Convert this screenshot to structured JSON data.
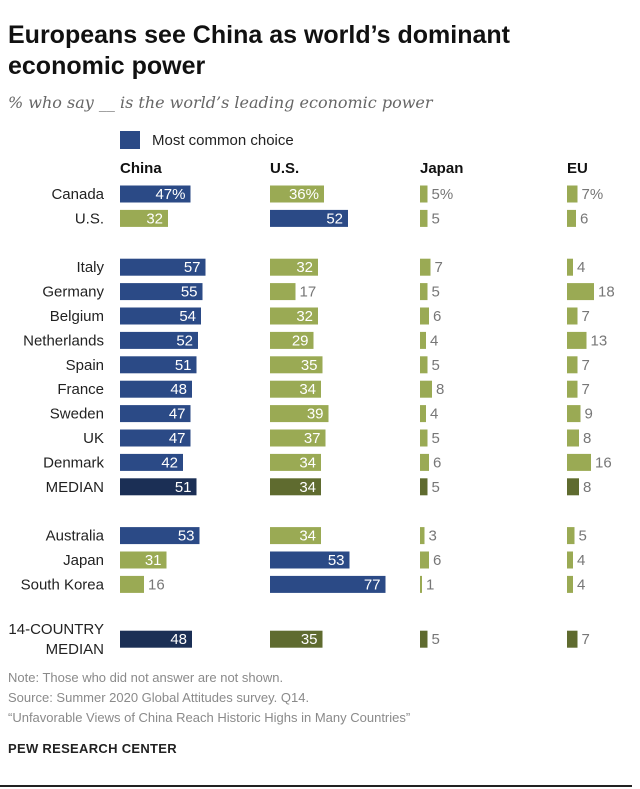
{
  "title": "Europeans see China as world’s dominant economic power",
  "subtitle": "% who say __ is the world’s leading economic power",
  "legend": {
    "label": "Most common choice",
    "color": "#2b4a86"
  },
  "colors": {
    "most_common": "#2b4a86",
    "other": "#9aaa54",
    "median_most_common": "#1b2f55",
    "median_other": "#5f6b2f",
    "label_on_dark": "#ffffff",
    "label_on_light": "#ffffff",
    "label_outside": "#777777"
  },
  "chart_data": {
    "type": "bar",
    "orientation": "horizontal",
    "columns": [
      "China",
      "U.S.",
      "Japan",
      "EU"
    ],
    "rows": [
      {
        "label": "Canada",
        "values": [
          47,
          36,
          5,
          7
        ],
        "pct": true,
        "most_common": 0,
        "median": false,
        "group_break_before": false
      },
      {
        "label": "U.S.",
        "values": [
          32,
          52,
          5,
          6
        ],
        "pct": false,
        "most_common": 1,
        "median": false,
        "group_break_before": false
      },
      {
        "label": "Italy",
        "values": [
          57,
          32,
          7,
          4
        ],
        "pct": false,
        "most_common": 0,
        "median": false,
        "group_break_before": true
      },
      {
        "label": "Germany",
        "values": [
          55,
          17,
          5,
          18
        ],
        "pct": false,
        "most_common": 0,
        "median": false,
        "group_break_before": false
      },
      {
        "label": "Belgium",
        "values": [
          54,
          32,
          6,
          7
        ],
        "pct": false,
        "most_common": 0,
        "median": false,
        "group_break_before": false
      },
      {
        "label": "Netherlands",
        "values": [
          52,
          29,
          4,
          13
        ],
        "pct": false,
        "most_common": 0,
        "median": false,
        "group_break_before": false
      },
      {
        "label": "Spain",
        "values": [
          51,
          35,
          5,
          7
        ],
        "pct": false,
        "most_common": 0,
        "median": false,
        "group_break_before": false
      },
      {
        "label": "France",
        "values": [
          48,
          34,
          8,
          7
        ],
        "pct": false,
        "most_common": 0,
        "median": false,
        "group_break_before": false
      },
      {
        "label": "Sweden",
        "values": [
          47,
          39,
          4,
          9
        ],
        "pct": false,
        "most_common": 0,
        "median": false,
        "group_break_before": false
      },
      {
        "label": "UK",
        "values": [
          47,
          37,
          5,
          8
        ],
        "pct": false,
        "most_common": 0,
        "median": false,
        "group_break_before": false
      },
      {
        "label": "Denmark",
        "values": [
          42,
          34,
          6,
          16
        ],
        "pct": false,
        "most_common": 0,
        "median": false,
        "group_break_before": false
      },
      {
        "label": "MEDIAN",
        "values": [
          51,
          34,
          5,
          8
        ],
        "pct": false,
        "most_common": 0,
        "median": true,
        "group_break_before": false
      },
      {
        "label": "Australia",
        "values": [
          53,
          34,
          3,
          5
        ],
        "pct": false,
        "most_common": 0,
        "median": false,
        "group_break_before": true
      },
      {
        "label": "Japan",
        "values": [
          31,
          53,
          6,
          4
        ],
        "pct": false,
        "most_common": 1,
        "median": false,
        "group_break_before": false
      },
      {
        "label": "South Korea",
        "values": [
          16,
          77,
          1,
          4
        ],
        "pct": false,
        "most_common": 1,
        "median": false,
        "group_break_before": false
      },
      {
        "label": "14-COUNTRY MEDIAN",
        "label_lines": [
          "14-COUNTRY",
          "MEDIAN"
        ],
        "values": [
          48,
          35,
          5,
          7
        ],
        "pct": false,
        "most_common": 0,
        "median": true,
        "group_break_before": true
      }
    ]
  },
  "footer": {
    "note": "Note: Those who did not answer are not shown.",
    "source": "Source: Summer 2020 Global Attitudes survey. Q14.",
    "report": "“Unfavorable Views of China Reach Historic Highs in Many Countries”",
    "org": "PEW RESEARCH CENTER"
  }
}
